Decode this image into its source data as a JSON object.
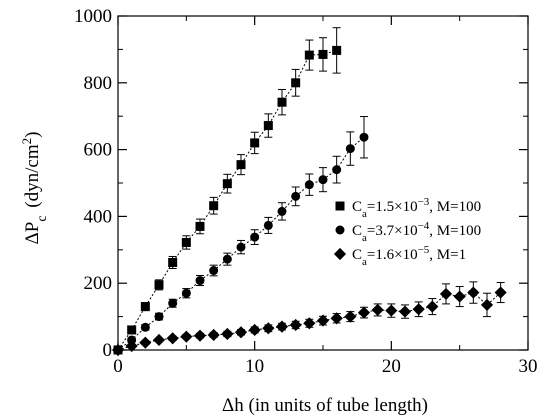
{
  "chart_data": {
    "type": "scatter",
    "xlabel": "Δh (in units of tube length)",
    "ylabel": "ΔP",
    "ylabel_sub": "c",
    "ylabel_units": "(dyn/cm",
    "ylabel_units_sup": "2",
    "ylabel_units_close": ")",
    "xlim": [
      0,
      30
    ],
    "ylim": [
      0,
      1000
    ],
    "xticks": [
      0,
      10,
      20,
      30
    ],
    "yticks": [
      0,
      200,
      400,
      600,
      800,
      1000
    ],
    "xtick_labels": [
      "0",
      "10",
      "20",
      "30"
    ],
    "ytick_labels": [
      "0",
      "200",
      "400",
      "600",
      "800",
      "1000"
    ],
    "grid": false,
    "legend_position": "right-middle",
    "series": [
      {
        "legend": {
          "c": "C",
          "sub": "a",
          "eq": "=1.5×10",
          "sup": "−3",
          "tail": ", M=100"
        },
        "marker": "square",
        "fit_line": true,
        "points": [
          {
            "x": 0,
            "y": 0,
            "err": 0
          },
          {
            "x": 1,
            "y": 60,
            "err": 10
          },
          {
            "x": 2,
            "y": 130,
            "err": 12
          },
          {
            "x": 3,
            "y": 195,
            "err": 15
          },
          {
            "x": 4,
            "y": 262,
            "err": 18
          },
          {
            "x": 5,
            "y": 322,
            "err": 20
          },
          {
            "x": 6,
            "y": 370,
            "err": 22
          },
          {
            "x": 7,
            "y": 432,
            "err": 25
          },
          {
            "x": 8,
            "y": 498,
            "err": 28
          },
          {
            "x": 9,
            "y": 555,
            "err": 30
          },
          {
            "x": 10,
            "y": 620,
            "err": 32
          },
          {
            "x": 11,
            "y": 672,
            "err": 35
          },
          {
            "x": 12,
            "y": 742,
            "err": 38
          },
          {
            "x": 13,
            "y": 800,
            "err": 40
          },
          {
            "x": 14,
            "y": 883,
            "err": 45
          },
          {
            "x": 15,
            "y": 885,
            "err": 50
          },
          {
            "x": 16,
            "y": 897,
            "err": 68
          }
        ]
      },
      {
        "legend": {
          "c": "C",
          "sub": "a",
          "eq": "=3.7×10",
          "sup": "−4",
          "tail": ", M=100"
        },
        "marker": "circle",
        "fit_line": true,
        "points": [
          {
            "x": 0,
            "y": 0,
            "err": 0
          },
          {
            "x": 1,
            "y": 30,
            "err": 6
          },
          {
            "x": 2,
            "y": 68,
            "err": 8
          },
          {
            "x": 3,
            "y": 100,
            "err": 10
          },
          {
            "x": 4,
            "y": 140,
            "err": 12
          },
          {
            "x": 5,
            "y": 170,
            "err": 14
          },
          {
            "x": 6,
            "y": 208,
            "err": 15
          },
          {
            "x": 7,
            "y": 238,
            "err": 16
          },
          {
            "x": 8,
            "y": 272,
            "err": 18
          },
          {
            "x": 9,
            "y": 308,
            "err": 20
          },
          {
            "x": 10,
            "y": 338,
            "err": 22
          },
          {
            "x": 11,
            "y": 373,
            "err": 24
          },
          {
            "x": 12,
            "y": 415,
            "err": 26
          },
          {
            "x": 13,
            "y": 460,
            "err": 28
          },
          {
            "x": 14,
            "y": 495,
            "err": 32
          },
          {
            "x": 15,
            "y": 510,
            "err": 36
          },
          {
            "x": 16,
            "y": 540,
            "err": 40
          },
          {
            "x": 17,
            "y": 603,
            "err": 50
          },
          {
            "x": 18,
            "y": 637,
            "err": 62
          }
        ]
      },
      {
        "legend": {
          "c": "C",
          "sub": "a",
          "eq": "=1.6×10",
          "sup": "−5",
          "tail": ", M=1"
        },
        "marker": "diamond",
        "fit_line": true,
        "points": [
          {
            "x": 0,
            "y": 0,
            "err": 0
          },
          {
            "x": 1,
            "y": 12,
            "err": 4
          },
          {
            "x": 2,
            "y": 22,
            "err": 5
          },
          {
            "x": 3,
            "y": 30,
            "err": 5
          },
          {
            "x": 4,
            "y": 35,
            "err": 6
          },
          {
            "x": 5,
            "y": 40,
            "err": 6
          },
          {
            "x": 6,
            "y": 43,
            "err": 7
          },
          {
            "x": 7,
            "y": 45,
            "err": 7
          },
          {
            "x": 8,
            "y": 48,
            "err": 8
          },
          {
            "x": 9,
            "y": 53,
            "err": 8
          },
          {
            "x": 10,
            "y": 60,
            "err": 9
          },
          {
            "x": 11,
            "y": 65,
            "err": 10
          },
          {
            "x": 12,
            "y": 70,
            "err": 10
          },
          {
            "x": 13,
            "y": 75,
            "err": 11
          },
          {
            "x": 14,
            "y": 80,
            "err": 12
          },
          {
            "x": 15,
            "y": 88,
            "err": 13
          },
          {
            "x": 16,
            "y": 95,
            "err": 14
          },
          {
            "x": 17,
            "y": 100,
            "err": 15
          },
          {
            "x": 18,
            "y": 112,
            "err": 16
          },
          {
            "x": 19,
            "y": 120,
            "err": 18
          },
          {
            "x": 20,
            "y": 118,
            "err": 20
          },
          {
            "x": 21,
            "y": 115,
            "err": 20
          },
          {
            "x": 22,
            "y": 122,
            "err": 22
          },
          {
            "x": 23,
            "y": 130,
            "err": 24
          },
          {
            "x": 24,
            "y": 168,
            "err": 30
          },
          {
            "x": 25,
            "y": 160,
            "err": 30
          },
          {
            "x": 26,
            "y": 172,
            "err": 32
          },
          {
            "x": 27,
            "y": 135,
            "err": 35
          },
          {
            "x": 28,
            "y": 172,
            "err": 30
          }
        ]
      }
    ]
  }
}
